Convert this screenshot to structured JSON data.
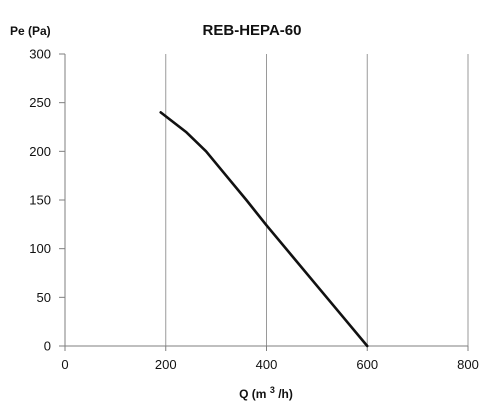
{
  "chart_data": {
    "type": "line",
    "title": "REB-HEPA-60",
    "xlabel_main": "Q (m",
    "xlabel_sup": "3",
    "xlabel_end": "/h)",
    "ylabel": "Pe (Pa)",
    "xlim": [
      0,
      800
    ],
    "ylim": [
      0,
      300
    ],
    "x_ticks": [
      0,
      200,
      400,
      600,
      800
    ],
    "y_ticks": [
      0,
      50,
      100,
      150,
      200,
      250,
      300
    ],
    "x_tick_labels": [
      "0",
      "200",
      "400",
      "600",
      "800"
    ],
    "y_tick_labels": [
      "0",
      "50",
      "100",
      "150",
      "200",
      "250",
      "300"
    ],
    "grid": {
      "x": true,
      "y": false
    },
    "series": [
      {
        "x": [
          190,
          240,
          280,
          320,
          360,
          400,
          450,
          500,
          550,
          600
        ],
        "y": [
          240,
          220,
          200,
          175,
          150,
          124,
          93,
          62,
          31,
          0
        ],
        "color": "#111111"
      }
    ],
    "colors": {
      "grid": "#9a9a9a",
      "axis": "#7f7f7f",
      "text": "#111111",
      "line": "#111111"
    }
  }
}
